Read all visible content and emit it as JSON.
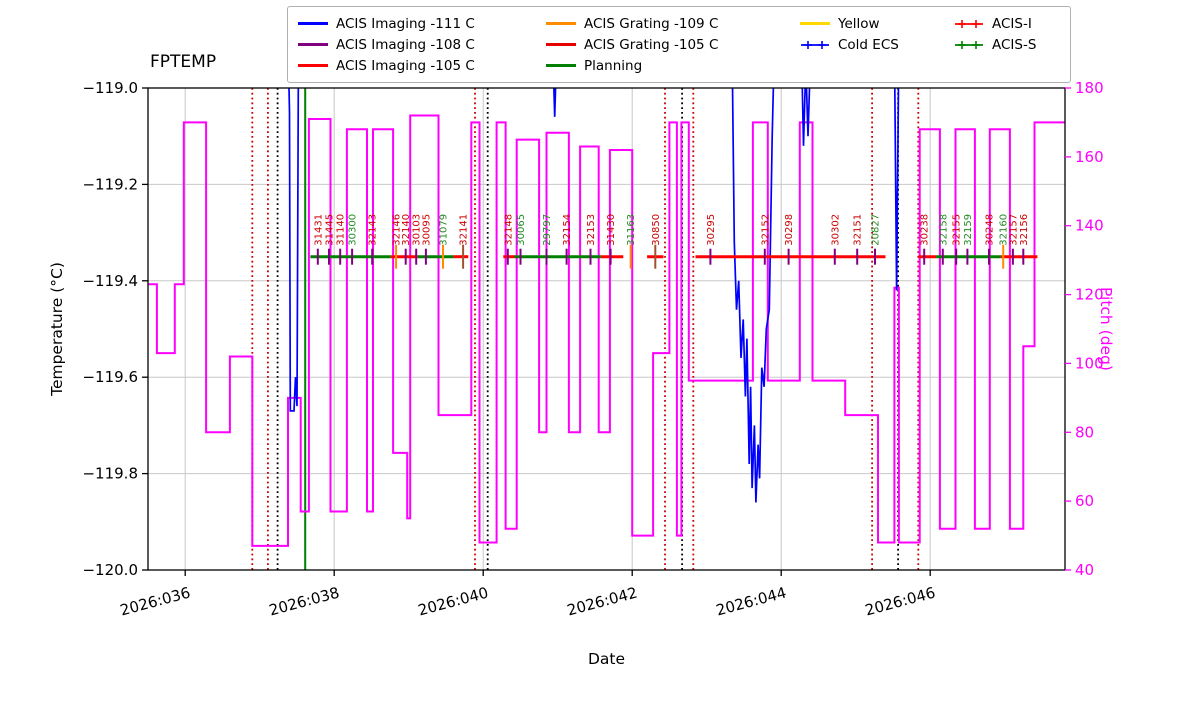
{
  "title": "FPTEMP",
  "axes": {
    "xlabel": "Date",
    "ylabel_left": "Temperature (°C)",
    "ylabel_right": "Pitch (deg)"
  },
  "legend": {
    "columns": [
      [
        {
          "label": "ACIS Imaging -111 C",
          "color": "#0000ff",
          "marker": "line"
        },
        {
          "label": "ACIS Imaging -108 C",
          "color": "#800080",
          "marker": "line"
        },
        {
          "label": "ACIS Imaging -105 C",
          "color": "#ff0000",
          "marker": "line"
        }
      ],
      [
        {
          "label": "ACIS Grating -109 C",
          "color": "#ff8c00",
          "marker": "line"
        },
        {
          "label": "ACIS Grating -105 C",
          "color": "#e60000",
          "marker": "line"
        },
        {
          "label": "Planning",
          "color": "#008000",
          "marker": "line"
        }
      ],
      [
        {
          "label": "Yellow",
          "color": "#ffd700",
          "marker": "line"
        },
        {
          "label": "Cold ECS",
          "color": "#0000ff",
          "marker": "plus-line"
        }
      ],
      [
        {
          "label": "ACIS-I",
          "color": "#ff0000",
          "marker": "plus-line"
        },
        {
          "label": "ACIS-S",
          "color": "#008000",
          "marker": "plus-line"
        }
      ]
    ]
  },
  "chart_data": {
    "type": "line",
    "title": "FPTEMP",
    "xlabel": "Date",
    "ylabel_left": "Temperature (°C)",
    "ylabel_right": "Pitch (deg)",
    "xlim": [
      35.5,
      47.81
    ],
    "ylim_left": [
      -120.0,
      -119.0
    ],
    "ylim_right": [
      40,
      180
    ],
    "grid_color": "#c8c8c8",
    "x_ticks": [
      {
        "v": 36,
        "label": "2026:036"
      },
      {
        "v": 38,
        "label": "2026:038"
      },
      {
        "v": 40,
        "label": "2026:040"
      },
      {
        "v": 42,
        "label": "2026:042"
      },
      {
        "v": 44,
        "label": "2026:044"
      },
      {
        "v": 46,
        "label": "2026:046"
      }
    ],
    "y_ticks_left": [
      {
        "v": -119.0,
        "label": "−119.0"
      },
      {
        "v": -119.2,
        "label": "−119.2"
      },
      {
        "v": -119.4,
        "label": "−119.4"
      },
      {
        "v": -119.6,
        "label": "−119.6"
      },
      {
        "v": -119.8,
        "label": "−119.8"
      },
      {
        "v": -120.0,
        "label": "−120.0"
      }
    ],
    "y_ticks_right": [
      {
        "v": 40,
        "label": "40"
      },
      {
        "v": 60,
        "label": "60"
      },
      {
        "v": 80,
        "label": "80"
      },
      {
        "v": 100,
        "label": "100"
      },
      {
        "v": 120,
        "label": "120"
      },
      {
        "v": 140,
        "label": "140"
      },
      {
        "v": 160,
        "label": "160"
      },
      {
        "v": 180,
        "label": "180"
      }
    ],
    "series": {
      "pitch": {
        "name": "Pitch",
        "color": "#ff00ff",
        "steps": [
          [
            35.5,
            123
          ],
          [
            35.62,
            103
          ],
          [
            35.86,
            123
          ],
          [
            35.98,
            170
          ],
          [
            36.28,
            80
          ],
          [
            36.6,
            102
          ],
          [
            36.9,
            47
          ],
          [
            37.38,
            90
          ],
          [
            37.55,
            57
          ],
          [
            37.66,
            171
          ],
          [
            37.95,
            57
          ],
          [
            38.17,
            168
          ],
          [
            38.44,
            57
          ],
          [
            38.52,
            168
          ],
          [
            38.79,
            74
          ],
          [
            38.98,
            55
          ],
          [
            39.02,
            172
          ],
          [
            39.4,
            85
          ],
          [
            39.84,
            170
          ],
          [
            39.95,
            48
          ],
          [
            40.18,
            170
          ],
          [
            40.3,
            52
          ],
          [
            40.45,
            165
          ],
          [
            40.75,
            80
          ],
          [
            40.85,
            167
          ],
          [
            41.15,
            80
          ],
          [
            41.3,
            163
          ],
          [
            41.55,
            80
          ],
          [
            41.7,
            162
          ],
          [
            42.0,
            50
          ],
          [
            42.28,
            103
          ],
          [
            42.5,
            170
          ],
          [
            42.6,
            50
          ],
          [
            42.66,
            170
          ],
          [
            42.76,
            95
          ],
          [
            43.62,
            170
          ],
          [
            43.82,
            95
          ],
          [
            44.25,
            170
          ],
          [
            44.42,
            95
          ],
          [
            44.86,
            85
          ],
          [
            45.3,
            48
          ],
          [
            45.52,
            122
          ],
          [
            45.58,
            48
          ],
          [
            45.86,
            168
          ],
          [
            46.13,
            52
          ],
          [
            46.34,
            168
          ],
          [
            46.6,
            52
          ],
          [
            46.8,
            168
          ],
          [
            47.07,
            52
          ],
          [
            47.25,
            105
          ],
          [
            47.4,
            170
          ]
        ]
      },
      "fptemp": {
        "name": "FPTEMP",
        "color": "#0000ff",
        "points": [
          [
            35.5,
            -118.9
          ],
          [
            37.38,
            -118.9
          ],
          [
            37.4,
            -119.05
          ],
          [
            37.41,
            -119.67
          ],
          [
            37.46,
            -119.67
          ],
          [
            37.48,
            -119.6
          ],
          [
            37.5,
            -119.66
          ],
          [
            37.52,
            -118.9
          ],
          [
            40.93,
            -118.9
          ],
          [
            40.96,
            -119.06
          ],
          [
            40.99,
            -118.9
          ],
          [
            43.34,
            -118.9
          ],
          [
            43.37,
            -119.32
          ],
          [
            43.4,
            -119.46
          ],
          [
            43.43,
            -119.4
          ],
          [
            43.46,
            -119.56
          ],
          [
            43.49,
            -119.48
          ],
          [
            43.52,
            -119.64
          ],
          [
            43.54,
            -119.52
          ],
          [
            43.57,
            -119.78
          ],
          [
            43.59,
            -119.62
          ],
          [
            43.61,
            -119.83
          ],
          [
            43.64,
            -119.7
          ],
          [
            43.66,
            -119.86
          ],
          [
            43.69,
            -119.74
          ],
          [
            43.71,
            -119.81
          ],
          [
            43.74,
            -119.58
          ],
          [
            43.77,
            -119.62
          ],
          [
            43.8,
            -119.5
          ],
          [
            43.84,
            -119.46
          ],
          [
            43.88,
            -119.1
          ],
          [
            43.91,
            -118.9
          ],
          [
            44.27,
            -118.9
          ],
          [
            44.3,
            -119.12
          ],
          [
            44.33,
            -118.95
          ],
          [
            44.36,
            -119.1
          ],
          [
            44.4,
            -118.9
          ],
          [
            45.52,
            -118.9
          ],
          [
            45.55,
            -119.42
          ],
          [
            45.58,
            -118.9
          ],
          [
            47.8,
            -118.9
          ]
        ]
      }
    },
    "vlines": {
      "red_dotted": {
        "color": "#cc0000",
        "x": [
          36.9,
          37.11,
          39.89,
          42.44,
          42.82,
          45.22,
          45.84
        ]
      },
      "black_dotted": {
        "color": "#000000",
        "x": [
          37.24,
          40.06,
          42.67,
          45.57
        ]
      },
      "green_solid": {
        "color": "#008000",
        "x": [
          37.61
        ]
      }
    },
    "command_line_y": -119.35,
    "segments": [
      {
        "x1": 37.68,
        "x2": 38.76,
        "color": "#008000"
      },
      {
        "x1": 38.76,
        "x2": 39.12,
        "color": "#ff0000"
      },
      {
        "x1": 39.12,
        "x2": 39.6,
        "color": "#008000"
      },
      {
        "x1": 39.6,
        "x2": 39.8,
        "color": "#ff0000"
      },
      {
        "x1": 40.27,
        "x2": 40.42,
        "color": "#ff0000"
      },
      {
        "x1": 40.42,
        "x2": 41.58,
        "color": "#008000"
      },
      {
        "x1": 41.58,
        "x2": 41.88,
        "color": "#ff0000"
      },
      {
        "x1": 42.2,
        "x2": 42.42,
        "color": "#ff0000"
      },
      {
        "x1": 42.85,
        "x2": 45.4,
        "color": "#ff0000"
      },
      {
        "x1": 45.84,
        "x2": 46.08,
        "color": "#ff0000"
      },
      {
        "x1": 46.08,
        "x2": 46.95,
        "color": "#008000"
      },
      {
        "x1": 46.95,
        "x2": 47.44,
        "color": "#ff0000"
      }
    ],
    "obsids": [
      {
        "x": 37.78,
        "id": "31431",
        "color": "#cc0000",
        "tick": "#800080"
      },
      {
        "x": 37.93,
        "id": "31445",
        "color": "#cc0000",
        "tick": "#800080"
      },
      {
        "x": 38.08,
        "id": "31140",
        "color": "#cc0000",
        "tick": "#800080"
      },
      {
        "x": 38.24,
        "id": "30300",
        "color": "#228b22",
        "tick": "#800080"
      },
      {
        "x": 38.51,
        "id": "32143",
        "color": "#cc0000",
        "tick": "#800080"
      },
      {
        "x": 38.83,
        "id": "32146",
        "color": "#cc0000",
        "tick": "#ff8c00"
      },
      {
        "x": 38.96,
        "id": "32140",
        "color": "#cc0000",
        "tick": "#800080"
      },
      {
        "x": 39.1,
        "id": "30103",
        "color": "#cc0000",
        "tick": "#800080"
      },
      {
        "x": 39.23,
        "id": "30095",
        "color": "#cc0000",
        "tick": "#800080"
      },
      {
        "x": 39.46,
        "id": "31079",
        "color": "#228b22",
        "tick": "#ff8c00"
      },
      {
        "x": 39.73,
        "id": "32141",
        "color": "#cc0000",
        "tick": "#a0522d"
      },
      {
        "x": 40.33,
        "id": "32148",
        "color": "#cc0000",
        "tick": "#800080"
      },
      {
        "x": 40.5,
        "id": "30065",
        "color": "#228b22",
        "tick": "#800080"
      },
      {
        "x": 40.85,
        "id": "29797",
        "color": "#228b22",
        "tick": "#800080"
      },
      {
        "x": 41.12,
        "id": "32154",
        "color": "#cc0000",
        "tick": "#800080"
      },
      {
        "x": 41.44,
        "id": "32153",
        "color": "#cc0000",
        "tick": "#800080"
      },
      {
        "x": 41.71,
        "id": "31430",
        "color": "#cc0000",
        "tick": "#800080"
      },
      {
        "x": 41.98,
        "id": "31163",
        "color": "#228b22",
        "tick": "#ff8c00"
      },
      {
        "x": 42.31,
        "id": "30850",
        "color": "#cc0000",
        "tick": "#a0522d"
      },
      {
        "x": 43.05,
        "id": "30295",
        "color": "#cc0000",
        "tick": "#800080"
      },
      {
        "x": 43.78,
        "id": "32152",
        "color": "#cc0000",
        "tick": "#800080"
      },
      {
        "x": 44.1,
        "id": "30298",
        "color": "#cc0000",
        "tick": "#800080"
      },
      {
        "x": 44.72,
        "id": "30302",
        "color": "#cc0000",
        "tick": "#800080"
      },
      {
        "x": 45.02,
        "id": "32151",
        "color": "#cc0000",
        "tick": "#800080"
      },
      {
        "x": 45.26,
        "id": "20827",
        "color": "#228b22",
        "tick": "#800080"
      },
      {
        "x": 45.92,
        "id": "30238",
        "color": "#cc0000",
        "tick": "#800080"
      },
      {
        "x": 46.17,
        "id": "32158",
        "color": "#228b22",
        "tick": "#800080"
      },
      {
        "x": 46.35,
        "id": "32155",
        "color": "#cc0000",
        "tick": "#800080"
      },
      {
        "x": 46.5,
        "id": "32159",
        "color": "#228b22",
        "tick": "#800080"
      },
      {
        "x": 46.79,
        "id": "30248",
        "color": "#cc0000",
        "tick": "#800080"
      },
      {
        "x": 46.98,
        "id": "32160",
        "color": "#228b22",
        "tick": "#ff8c00"
      },
      {
        "x": 47.11,
        "id": "32157",
        "color": "#cc0000",
        "tick": "#800080"
      },
      {
        "x": 47.25,
        "id": "32156",
        "color": "#cc0000",
        "tick": "#800080"
      }
    ]
  }
}
